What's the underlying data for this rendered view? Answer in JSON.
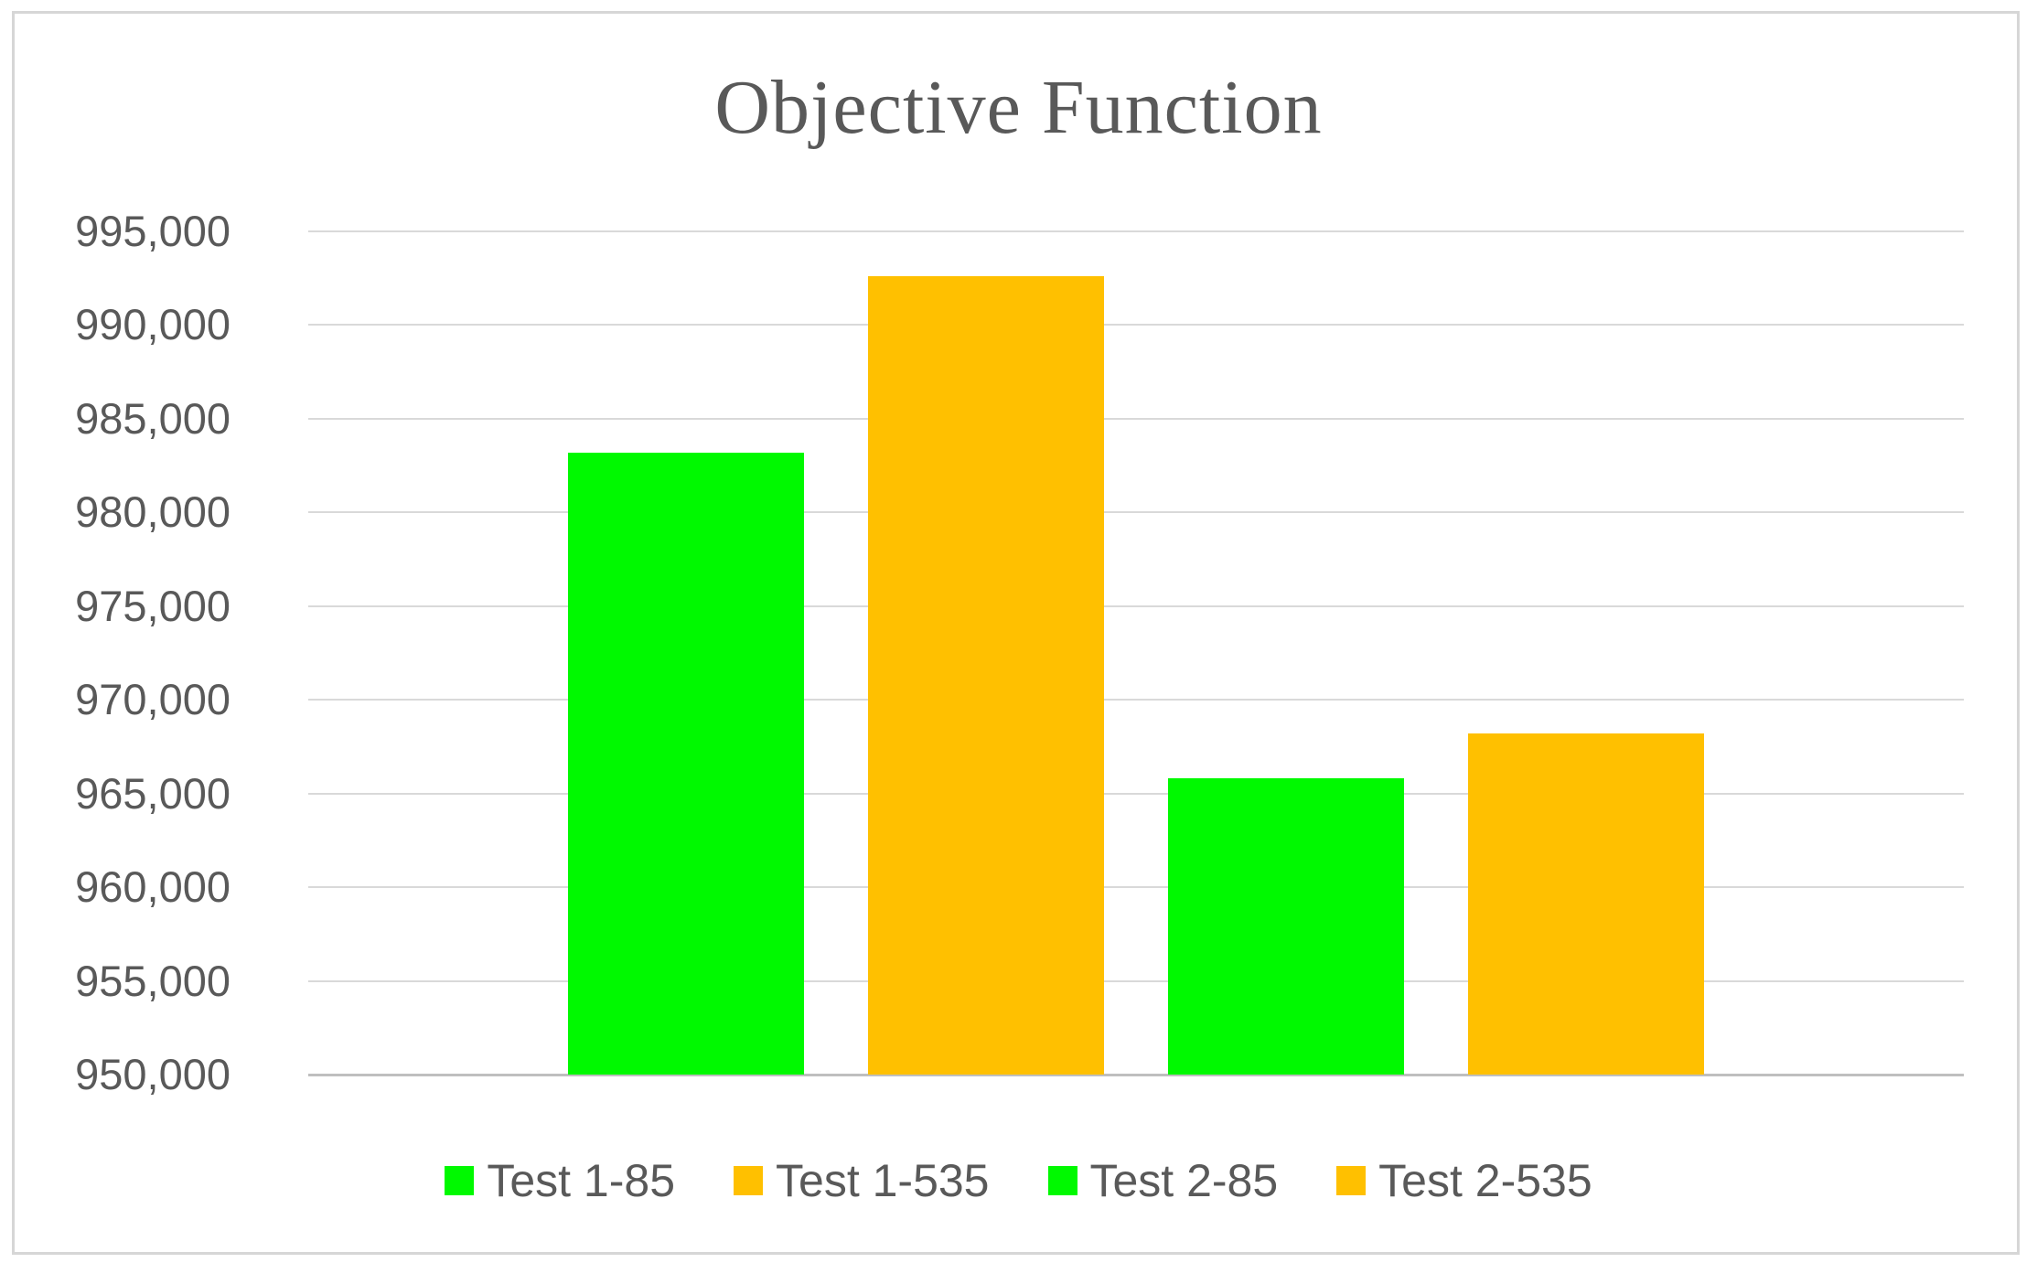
{
  "chart_data": {
    "type": "bar",
    "title": "Objective Function",
    "xlabel": "",
    "ylabel": "",
    "categories": [
      ""
    ],
    "series": [
      {
        "name": "Test 1-85",
        "color": "#00F900",
        "values": [
          983200
        ]
      },
      {
        "name": "Test 1-535",
        "color": "#FFC000",
        "values": [
          992600
        ]
      },
      {
        "name": "Test 2-85",
        "color": "#00F900",
        "values": [
          965800
        ]
      },
      {
        "name": "Test 2-535",
        "color": "#FFC000",
        "values": [
          968200
        ]
      }
    ],
    "ylim": [
      950000,
      995000
    ],
    "ytick_step": 5000,
    "yticks": [
      995000,
      990000,
      985000,
      980000,
      975000,
      970000,
      965000,
      960000,
      955000,
      950000
    ],
    "ytick_labels": [
      "995,000",
      "990,000",
      "985,000",
      "980,000",
      "975,000",
      "970,000",
      "965,000",
      "960,000",
      "955,000",
      "950,000"
    ],
    "grid": true,
    "legend_position": "bottom",
    "legend_entries": [
      "Test 1-85",
      "Test 1-535",
      "Test 2-85",
      "Test 2-535"
    ]
  },
  "colors": {
    "green_series": "#00F900",
    "gold_series": "#FFC000",
    "text": "#595959",
    "gridline": "#D9D9D9",
    "axis_line": "#BFBFBF",
    "chart_border": "#D6D6D6",
    "background": "#FFFFFF"
  }
}
